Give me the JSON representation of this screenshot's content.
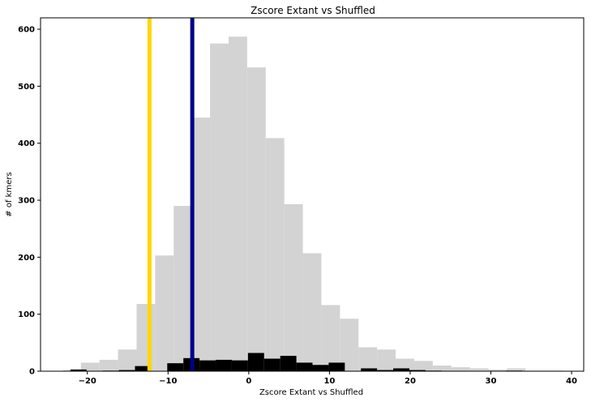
{
  "chart_data": {
    "type": "bar",
    "title": "Zscore Extant vs Shuffled",
    "xlabel": "Zscore Extant vs Shuffled",
    "ylabel": "# of kmers",
    "xlim": [
      -25.8,
      41.5
    ],
    "ylim": [
      0,
      620
    ],
    "xticks": [
      -20,
      -10,
      0,
      10,
      20,
      30,
      40
    ],
    "yticks": [
      0,
      100,
      200,
      300,
      400,
      500,
      600
    ],
    "grid": false,
    "legend": "none",
    "series": [
      {
        "color": "#d3d3d3",
        "bins": [
          {
            "x0": -23.0,
            "x1": -20.8,
            "count": 2
          },
          {
            "x0": -20.8,
            "x1": -18.5,
            "count": 15
          },
          {
            "x0": -18.5,
            "x1": -16.2,
            "count": 20
          },
          {
            "x0": -16.2,
            "x1": -13.9,
            "count": 38
          },
          {
            "x0": -13.9,
            "x1": -11.6,
            "count": 118
          },
          {
            "x0": -11.6,
            "x1": -9.3,
            "count": 203
          },
          {
            "x0": -9.3,
            "x1": -7.0,
            "count": 290
          },
          {
            "x0": -7.0,
            "x1": -4.8,
            "count": 445
          },
          {
            "x0": -4.8,
            "x1": -2.5,
            "count": 575
          },
          {
            "x0": -2.5,
            "x1": -0.2,
            "count": 587
          },
          {
            "x0": -0.2,
            "x1": 2.1,
            "count": 533
          },
          {
            "x0": 2.1,
            "x1": 4.4,
            "count": 409
          },
          {
            "x0": 4.4,
            "x1": 6.7,
            "count": 293
          },
          {
            "x0": 6.7,
            "x1": 9.0,
            "count": 207
          },
          {
            "x0": 9.0,
            "x1": 11.3,
            "count": 116
          },
          {
            "x0": 11.3,
            "x1": 13.6,
            "count": 92
          },
          {
            "x0": 13.6,
            "x1": 15.9,
            "count": 42
          },
          {
            "x0": 15.9,
            "x1": 18.2,
            "count": 38
          },
          {
            "x0": 18.2,
            "x1": 20.5,
            "count": 22
          },
          {
            "x0": 20.5,
            "x1": 22.8,
            "count": 18
          },
          {
            "x0": 22.8,
            "x1": 25.1,
            "count": 10
          },
          {
            "x0": 25.1,
            "x1": 27.4,
            "count": 7
          },
          {
            "x0": 27.4,
            "x1": 29.7,
            "count": 5
          },
          {
            "x0": 29.7,
            "x1": 32.0,
            "count": 3
          },
          {
            "x0": 32.0,
            "x1": 34.3,
            "count": 5
          },
          {
            "x0": 34.3,
            "x1": 36.6,
            "count": 1
          },
          {
            "x0": 36.6,
            "x1": 38.9,
            "count": 1
          }
        ]
      },
      {
        "color": "#000000",
        "bins": [
          {
            "x0": -22.1,
            "x1": -20.1,
            "count": 3
          },
          {
            "x0": -18.1,
            "x1": -16.1,
            "count": 1
          },
          {
            "x0": -16.1,
            "x1": -14.1,
            "count": 2
          },
          {
            "x0": -14.1,
            "x1": -12.1,
            "count": 9
          },
          {
            "x0": -10.1,
            "x1": -8.1,
            "count": 14
          },
          {
            "x0": -8.1,
            "x1": -6.1,
            "count": 23
          },
          {
            "x0": -6.1,
            "x1": -4.1,
            "count": 19
          },
          {
            "x0": -4.1,
            "x1": -2.1,
            "count": 20
          },
          {
            "x0": -2.1,
            "x1": -0.1,
            "count": 19
          },
          {
            "x0": -0.1,
            "x1": 1.9,
            "count": 32
          },
          {
            "x0": 1.9,
            "x1": 3.9,
            "count": 22
          },
          {
            "x0": 3.9,
            "x1": 5.9,
            "count": 27
          },
          {
            "x0": 5.9,
            "x1": 7.9,
            "count": 15
          },
          {
            "x0": 7.9,
            "x1": 9.9,
            "count": 11
          },
          {
            "x0": 9.9,
            "x1": 11.9,
            "count": 15
          },
          {
            "x0": 13.9,
            "x1": 15.9,
            "count": 5
          },
          {
            "x0": 15.9,
            "x1": 17.9,
            "count": 2
          },
          {
            "x0": 17.9,
            "x1": 19.9,
            "count": 5
          },
          {
            "x0": 19.9,
            "x1": 21.9,
            "count": 2
          },
          {
            "x0": 21.9,
            "x1": 23.9,
            "count": 1
          },
          {
            "x0": 31.9,
            "x1": 33.9,
            "count": 1
          }
        ]
      }
    ],
    "vlines": [
      {
        "x": -12.3,
        "color": "#ffd700"
      },
      {
        "x": -7.0,
        "color": "#00008b"
      }
    ]
  }
}
